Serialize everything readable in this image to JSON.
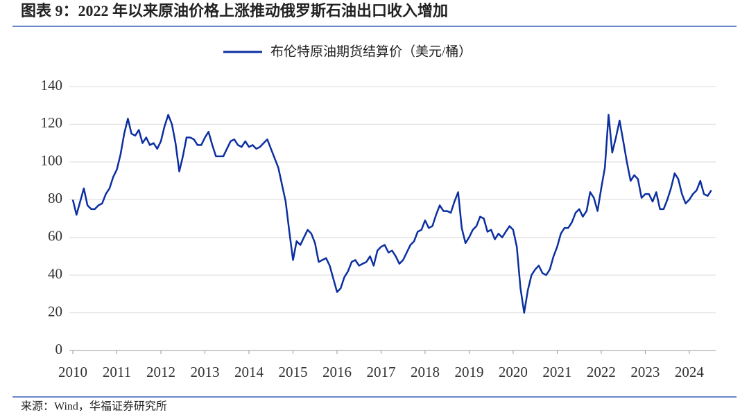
{
  "chart_data": {
    "type": "line",
    "title": "图表 9：2022 年以来原油价格上涨推动俄罗斯石油出口收入增加",
    "source": "来源：Wind，华福证券研究所",
    "xlim": [
      2010,
      2024.6
    ],
    "xticks": [
      2010,
      2011,
      2012,
      2013,
      2014,
      2015,
      2016,
      2017,
      2018,
      2019,
      2020,
      2021,
      2022,
      2023,
      2024
    ],
    "ylim": [
      0,
      140
    ],
    "yticks": [
      0,
      20,
      40,
      60,
      80,
      100,
      120,
      140
    ],
    "grid": true,
    "legend": "top",
    "x": [
      2010,
      2010.083,
      2010.167,
      2010.25,
      2010.333,
      2010.417,
      2010.5,
      2010.583,
      2010.667,
      2010.75,
      2010.833,
      2010.917,
      2011,
      2011.083,
      2011.167,
      2011.25,
      2011.333,
      2011.417,
      2011.5,
      2011.583,
      2011.667,
      2011.75,
      2011.833,
      2011.917,
      2012,
      2012.083,
      2012.167,
      2012.25,
      2012.333,
      2012.417,
      2012.5,
      2012.583,
      2012.667,
      2012.75,
      2012.833,
      2012.917,
      2013,
      2013.083,
      2013.167,
      2013.25,
      2013.333,
      2013.417,
      2013.5,
      2013.583,
      2013.667,
      2013.75,
      2013.833,
      2013.917,
      2014,
      2014.083,
      2014.167,
      2014.25,
      2014.333,
      2014.417,
      2014.5,
      2014.583,
      2014.667,
      2014.75,
      2014.833,
      2014.917,
      2015,
      2015.083,
      2015.167,
      2015.25,
      2015.333,
      2015.417,
      2015.5,
      2015.583,
      2015.667,
      2015.75,
      2015.833,
      2015.917,
      2016,
      2016.083,
      2016.167,
      2016.25,
      2016.333,
      2016.417,
      2016.5,
      2016.583,
      2016.667,
      2016.75,
      2016.833,
      2016.917,
      2017,
      2017.083,
      2017.167,
      2017.25,
      2017.333,
      2017.417,
      2017.5,
      2017.583,
      2017.667,
      2017.75,
      2017.833,
      2017.917,
      2018,
      2018.083,
      2018.167,
      2018.25,
      2018.333,
      2018.417,
      2018.5,
      2018.583,
      2018.667,
      2018.75,
      2018.833,
      2018.917,
      2019,
      2019.083,
      2019.167,
      2019.25,
      2019.333,
      2019.417,
      2019.5,
      2019.583,
      2019.667,
      2019.75,
      2019.833,
      2019.917,
      2020,
      2020.083,
      2020.167,
      2020.25,
      2020.333,
      2020.417,
      2020.5,
      2020.583,
      2020.667,
      2020.75,
      2020.833,
      2020.917,
      2021,
      2021.083,
      2021.167,
      2021.25,
      2021.333,
      2021.417,
      2021.5,
      2021.583,
      2021.667,
      2021.75,
      2021.833,
      2021.917,
      2022,
      2022.083,
      2022.167,
      2022.25,
      2022.333,
      2022.417,
      2022.5,
      2022.583,
      2022.667,
      2022.75,
      2022.833,
      2022.917,
      2023,
      2023.083,
      2023.167,
      2023.25,
      2023.333,
      2023.417,
      2023.5,
      2023.583,
      2023.667,
      2023.75,
      2023.833,
      2023.917,
      2024,
      2024.083,
      2024.167,
      2024.25,
      2024.333,
      2024.417,
      2024.5
    ],
    "series": [
      {
        "name": "布伦特原油期货结算价（美元/桶）",
        "color": "#0b2fa0",
        "values": [
          80,
          72,
          79,
          86,
          77,
          75,
          75,
          77,
          78,
          83,
          86,
          92,
          96,
          104,
          115,
          123,
          115,
          114,
          117,
          110,
          113,
          109,
          110,
          107,
          111,
          119,
          125,
          120,
          110,
          95,
          103,
          113,
          113,
          112,
          109,
          109,
          113,
          116,
          109,
          103,
          103,
          103,
          107,
          111,
          112,
          109,
          108,
          111,
          108,
          109,
          107,
          108,
          110,
          112,
          107,
          102,
          97,
          88,
          79,
          63,
          48,
          58,
          56,
          60,
          64,
          62,
          57,
          47,
          48,
          49,
          45,
          38,
          31,
          33,
          39,
          42,
          47,
          48,
          45,
          46,
          47,
          50,
          45,
          53,
          55,
          56,
          52,
          53,
          50,
          46,
          48,
          52,
          56,
          58,
          63,
          64,
          69,
          65,
          66,
          72,
          77,
          74,
          74,
          73,
          79,
          84,
          65,
          57,
          60,
          64,
          66,
          71,
          70,
          63,
          64,
          59,
          62,
          60,
          63,
          66,
          64,
          55,
          33,
          20,
          32,
          40,
          43,
          45,
          41,
          40,
          43,
          50,
          55,
          62,
          65,
          65,
          68,
          73,
          75,
          71,
          74,
          84,
          81,
          74,
          86,
          97,
          125,
          105,
          113,
          122,
          111,
          100,
          90,
          93,
          91,
          81,
          83,
          83,
          79,
          84,
          75,
          75,
          80,
          86,
          94,
          91,
          83,
          78,
          80,
          83,
          85,
          90,
          83,
          82,
          85
        ]
      }
    ]
  }
}
